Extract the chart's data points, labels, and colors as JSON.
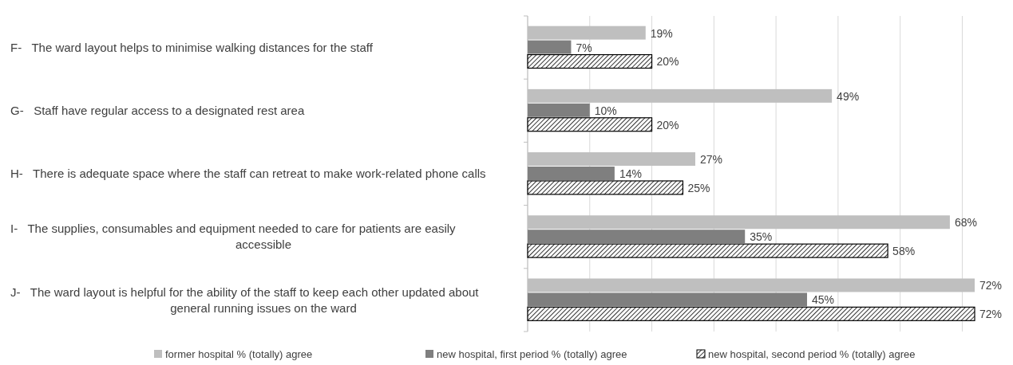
{
  "chart_data": {
    "type": "bar",
    "orientation": "horizontal",
    "categories": [
      "F-   The ward layout helps to minimise walking distances for the staff",
      "G-   Staff have regular access to a designated rest area",
      "H-   There is adequate space where the staff can retreat to make work-related phone calls",
      "I-   The supplies, consumables and equipment needed to care for patients are easily accessible",
      "J-   The ward layout is helpful for the ability of the staff to keep each other updated about general running issues on the ward"
    ],
    "series": [
      {
        "name": "former hospital % (totally) agree",
        "color": "#bfbfbf",
        "values": [
          19,
          49,
          27,
          68,
          72
        ],
        "value_labels": [
          "19%",
          "49%",
          "27%",
          "68%",
          "72%"
        ]
      },
      {
        "name": "new hospital, first period % (totally) agree",
        "color": "#7f7f7f",
        "values": [
          7,
          10,
          14,
          35,
          45
        ],
        "value_labels": [
          "7%",
          "10%",
          "14%",
          "35%",
          "45%"
        ]
      },
      {
        "name": "new hospital, second period % (totally) agree",
        "color": "#000000",
        "values": [
          20,
          20,
          25,
          58,
          72
        ],
        "value_labels": [
          "20%",
          "20%",
          "25%",
          "58%",
          "72%"
        ]
      }
    ],
    "xticks": [
      {
        "value": 0,
        "label": null
      },
      {
        "value": 10,
        "label": null
      },
      {
        "value": 20,
        "label": null
      },
      {
        "value": 30,
        "label": null
      },
      {
        "value": 40,
        "label": null
      },
      {
        "value": 50,
        "label": null
      },
      {
        "value": 60,
        "label": null
      },
      {
        "value": 70,
        "label": null
      }
    ],
    "tick_labels": "y",
    "grid": "x",
    "legend": "bottom"
  }
}
